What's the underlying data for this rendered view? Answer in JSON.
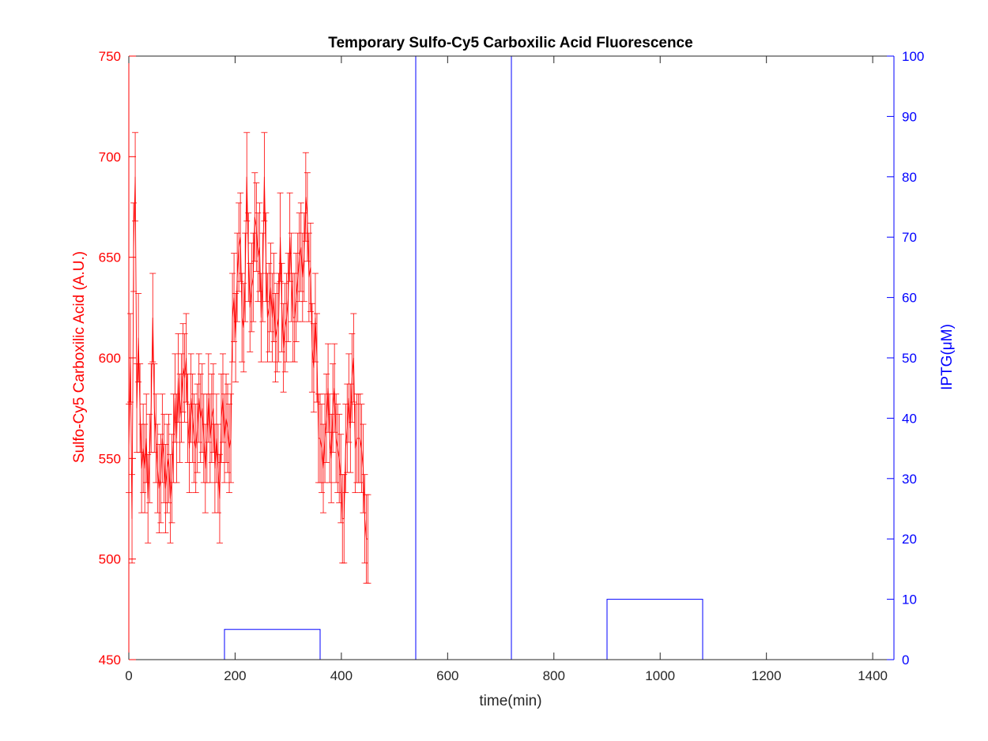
{
  "chart_data": {
    "type": "line",
    "title": "Temporary Sulfo-Cy5 Carboxilic Acid Fluorescence",
    "xlabel": "time(min)",
    "ylabel_left": "Sulfo-Cy5 Carboxilic Acid (A.U.)",
    "ylabel_right": "IPTG(μM)",
    "xlim": [
      0,
      1440
    ],
    "ylim_left": [
      450,
      750
    ],
    "ylim_right": [
      0,
      100
    ],
    "x_ticks": [
      0,
      200,
      400,
      600,
      800,
      1000,
      1200,
      1400
    ],
    "y_left_ticks": [
      450,
      500,
      550,
      600,
      650,
      700,
      750
    ],
    "y_right_ticks": [
      0,
      10,
      20,
      30,
      40,
      50,
      60,
      70,
      80,
      90,
      100
    ],
    "grid": false,
    "colors": {
      "fluorescence": "#ff0000",
      "iptg": "#0000ff",
      "axes": "#262626"
    },
    "series": [
      {
        "axis": "left",
        "style": "line-with-errorbars",
        "x_start": 0,
        "x_step": 3,
        "values": [
          555,
          600,
          520,
          655,
          690,
          575,
          610,
          575,
          545,
          555,
          545,
          560,
          530,
          550,
          575,
          620,
          575,
          560,
          545,
          535,
          540,
          560,
          550,
          535,
          545,
          550,
          530,
          540,
          560,
          580,
          560,
          590,
          570,
          580,
          595,
          590,
          600,
          570,
          555,
          580,
          570,
          560,
          555,
          565,
          580,
          570,
          575,
          560,
          545,
          560,
          580,
          560,
          570,
          575,
          545,
          560,
          545,
          530,
          570,
          580,
          560,
          570,
          565,
          555,
          560,
          620,
          630,
          610,
          640,
          655,
          660,
          620,
          615,
          640,
          690,
          650,
          625,
          635,
          640,
          670,
          665,
          650,
          655,
          620,
          640,
          690,
          650,
          620,
          625,
          635,
          620,
          630,
          610,
          615,
          620,
          660,
          625,
          605,
          615,
          620,
          630,
          660,
          640,
          620,
          620,
          630,
          640,
          650,
          655,
          640,
          650,
          680,
          670,
          640,
          645,
          605,
          595,
          620,
          600,
          560,
          560,
          555,
          545,
          560,
          570,
          585,
          560,
          550,
          575,
          585,
          560,
          555,
          550,
          540,
          520,
          520,
          555,
          565,
          580,
          565,
          590,
          600,
          555,
          560,
          560,
          560,
          555,
          545,
          520,
          510,
          510
        ],
        "errors": [
          22,
          22,
          22,
          22,
          22,
          22,
          22,
          22,
          22,
          22,
          22,
          22,
          22,
          22,
          22,
          22,
          22,
          22,
          22,
          22,
          22,
          22,
          22,
          22,
          22,
          22,
          22,
          22,
          22,
          22,
          22,
          22,
          22,
          22,
          22,
          22,
          22,
          22,
          22,
          22,
          22,
          22,
          22,
          22,
          22,
          22,
          22,
          22,
          22,
          22,
          22,
          22,
          22,
          22,
          22,
          22,
          22,
          22,
          22,
          22,
          22,
          22,
          22,
          22,
          22,
          22,
          22,
          22,
          22,
          22,
          22,
          22,
          22,
          22,
          22,
          22,
          22,
          22,
          22,
          22,
          22,
          22,
          22,
          22,
          22,
          22,
          22,
          22,
          22,
          22,
          22,
          22,
          22,
          22,
          22,
          22,
          22,
          22,
          22,
          22,
          22,
          22,
          22,
          22,
          22,
          22,
          22,
          22,
          22,
          22,
          22,
          22,
          22,
          22,
          22,
          22,
          22,
          22,
          22,
          22,
          22,
          22,
          22,
          22,
          22,
          22,
          22,
          22,
          22,
          22,
          22,
          22,
          22,
          22,
          22,
          22,
          22,
          22,
          22,
          22,
          22,
          22,
          22,
          22,
          22,
          22,
          22,
          22,
          22,
          22,
          22
        ]
      },
      {
        "axis": "right",
        "style": "step",
        "x": [
          0,
          180,
          180,
          360,
          360,
          540,
          540,
          720,
          720,
          900,
          900,
          1080,
          1080,
          1440
        ],
        "values": [
          0,
          0,
          5,
          5,
          0,
          0,
          100,
          100,
          0,
          0,
          10,
          10,
          0,
          0
        ]
      }
    ]
  }
}
